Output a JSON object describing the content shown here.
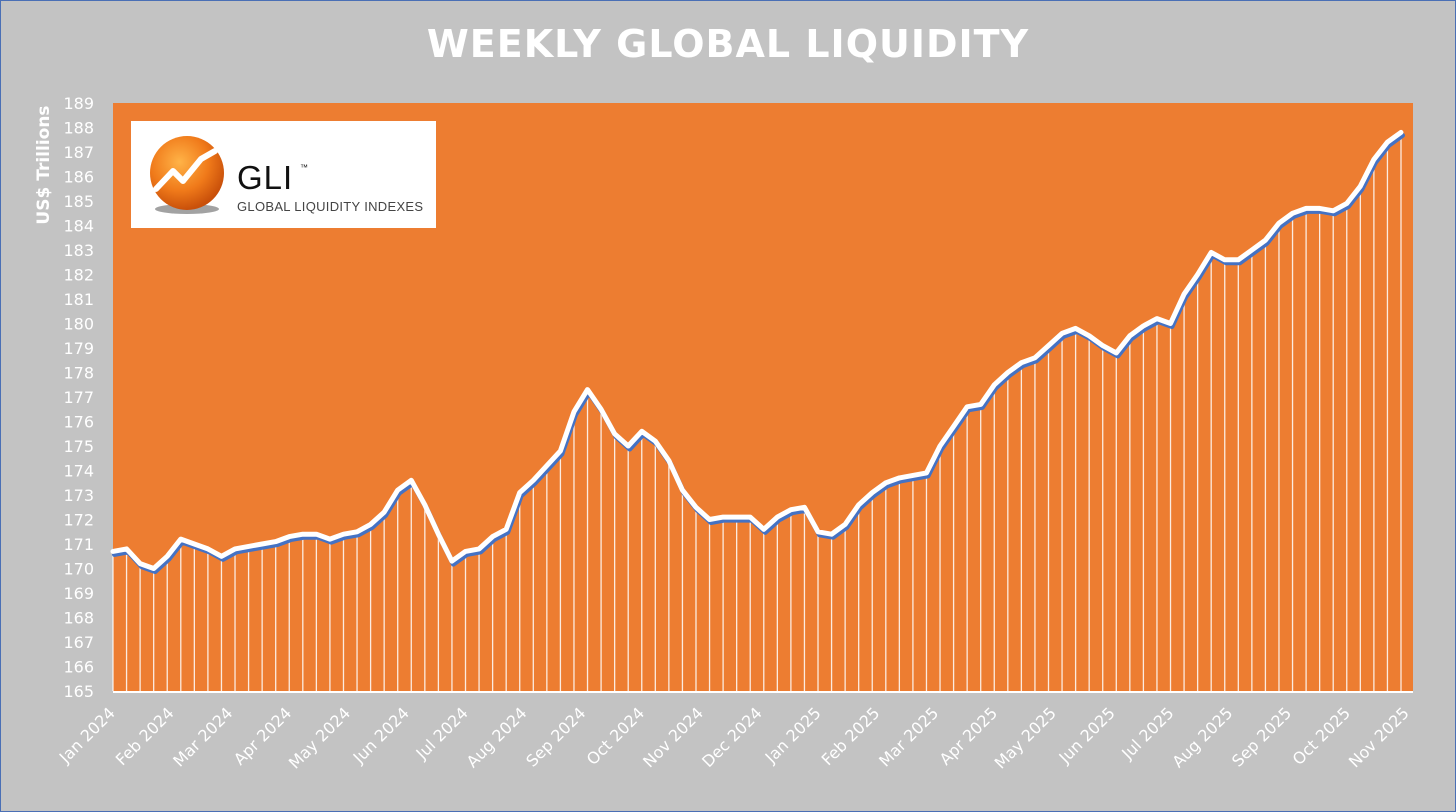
{
  "title": "WEEKLY GLOBAL LIQUIDITY",
  "logo": {
    "name": "GLI",
    "tm": "™",
    "subtitle": "GLOBAL LIQUIDITY INDEXES"
  },
  "colors": {
    "plot_bg": "#ed7d31",
    "line": "#ffffff",
    "shadow": "#4472c4",
    "page_bg": "#c3c3c3",
    "stripe": "#ffffff"
  },
  "chart_data": {
    "type": "line",
    "title": "WEEKLY GLOBAL LIQUIDITY",
    "xlabel": "",
    "ylabel": "US$ Trillions",
    "ylim": [
      165,
      189
    ],
    "yticks": [
      165,
      166,
      167,
      168,
      169,
      170,
      171,
      172,
      173,
      174,
      175,
      176,
      177,
      178,
      179,
      180,
      181,
      182,
      183,
      184,
      185,
      186,
      187,
      188,
      189
    ],
    "x_tick_labels": [
      "Jan 2024",
      "Feb 2024",
      "Mar 2024",
      "Apr 2024",
      "May 2024",
      "Jun 2024",
      "Jul 2024",
      "Aug 2024",
      "Sep 2024",
      "Oct 2024",
      "Nov 2024",
      "Dec 2024",
      "Jan 2025",
      "Feb 2025",
      "Mar 2025",
      "Apr 2025",
      "May 2025",
      "Jun 2025",
      "Jul 2025",
      "Aug 2025",
      "Sep 2025",
      "Oct 2025",
      "Nov 2025"
    ],
    "grid": false,
    "legend": "none",
    "series": [
      {
        "values": [
          170.7,
          170.8,
          170.2,
          170.0,
          170.5,
          171.2,
          171.0,
          170.8,
          170.5,
          170.8,
          170.9,
          171.0,
          171.1,
          171.3,
          171.4,
          171.4,
          171.2,
          171.4,
          171.5,
          171.8,
          172.3,
          173.2,
          173.6,
          172.6,
          171.4,
          170.3,
          170.7,
          170.8,
          171.3,
          171.6,
          173.1,
          173.6,
          174.2,
          174.8,
          176.4,
          177.3,
          176.5,
          175.5,
          175.0,
          175.6,
          175.2,
          174.4,
          173.2,
          172.5,
          172.0,
          172.1,
          172.1,
          172.1,
          171.6,
          172.1,
          172.4,
          172.5,
          171.5,
          171.4,
          171.8,
          172.6,
          173.1,
          173.5,
          173.7,
          173.8,
          173.9,
          175.0,
          175.8,
          176.6,
          176.7,
          177.5,
          178.0,
          178.4,
          178.6,
          179.1,
          179.6,
          179.8,
          179.5,
          179.1,
          178.8,
          179.5,
          179.9,
          180.2,
          180.0,
          181.2,
          182.0,
          182.9,
          182.6,
          182.6,
          183.0,
          183.4,
          184.1,
          184.5,
          184.7,
          184.7,
          184.6,
          184.9,
          185.6,
          186.7,
          187.4,
          187.8
        ]
      }
    ]
  }
}
